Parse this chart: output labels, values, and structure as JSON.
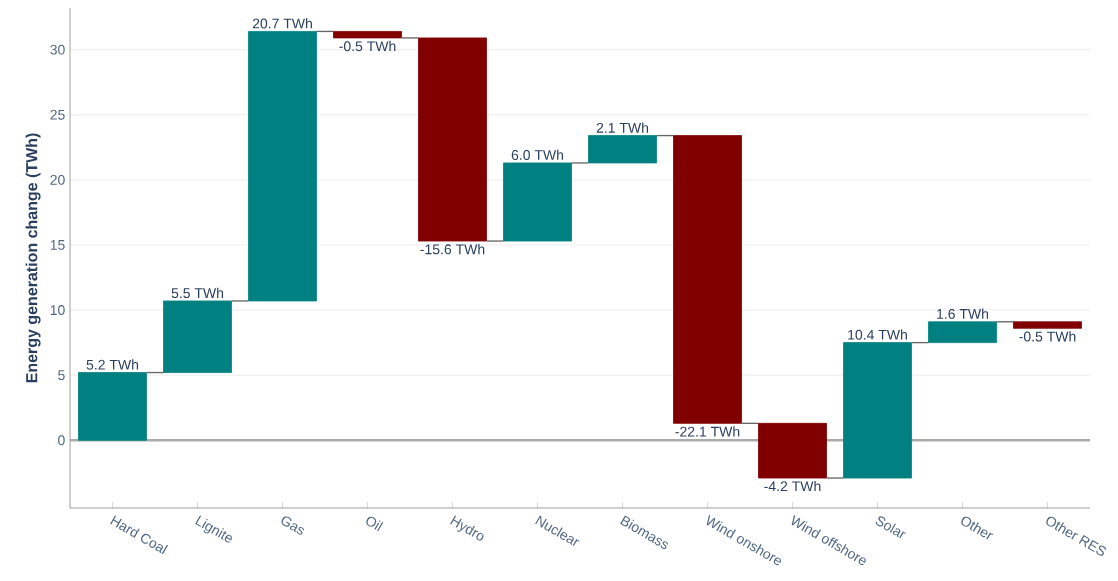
{
  "chart_data": {
    "type": "bar",
    "ylabel": "Energy generation change (TWh)",
    "categories": [
      "Hard Coal",
      "Lignite",
      "Gas",
      "Oil",
      "Hydro",
      "Nuclear",
      "Biomass",
      "Wind onshore",
      "Wind offshore",
      "Solar",
      "Other",
      "Other RES"
    ],
    "values": [
      5.2,
      5.5,
      20.7,
      -0.5,
      -15.6,
      6.0,
      2.1,
      -22.1,
      -4.2,
      10.4,
      1.6,
      -0.5
    ],
    "base": [
      0,
      5.2,
      10.7,
      31.4,
      30.9,
      15.3,
      21.3,
      23.4,
      1.3,
      -2.9,
      7.5,
      9.1
    ],
    "colors": [
      "#008080",
      "#008080",
      "#008080",
      "#800000",
      "#800000",
      "#008080",
      "#008080",
      "#800000",
      "#800000",
      "#008080",
      "#008080",
      "#800000"
    ],
    "value_labels": [
      "5.2 TWh",
      "5.5 TWh",
      "20.7 TWh",
      "-0.5 TWh",
      "-15.6 TWh",
      "6.0 TWh",
      "2.1 TWh",
      "-22.1 TWh",
      "-4.2 TWh",
      "10.4 TWh",
      "1.6 TWh",
      "-0.5 TWh"
    ],
    "ylim": [
      -5.2,
      33.2
    ],
    "yticks": [
      0,
      5,
      10,
      15,
      20,
      25,
      30
    ],
    "grid": "y",
    "ref_lines": [
      {
        "axis": "y",
        "value": 0,
        "color": "#aaaaaa"
      }
    ]
  }
}
